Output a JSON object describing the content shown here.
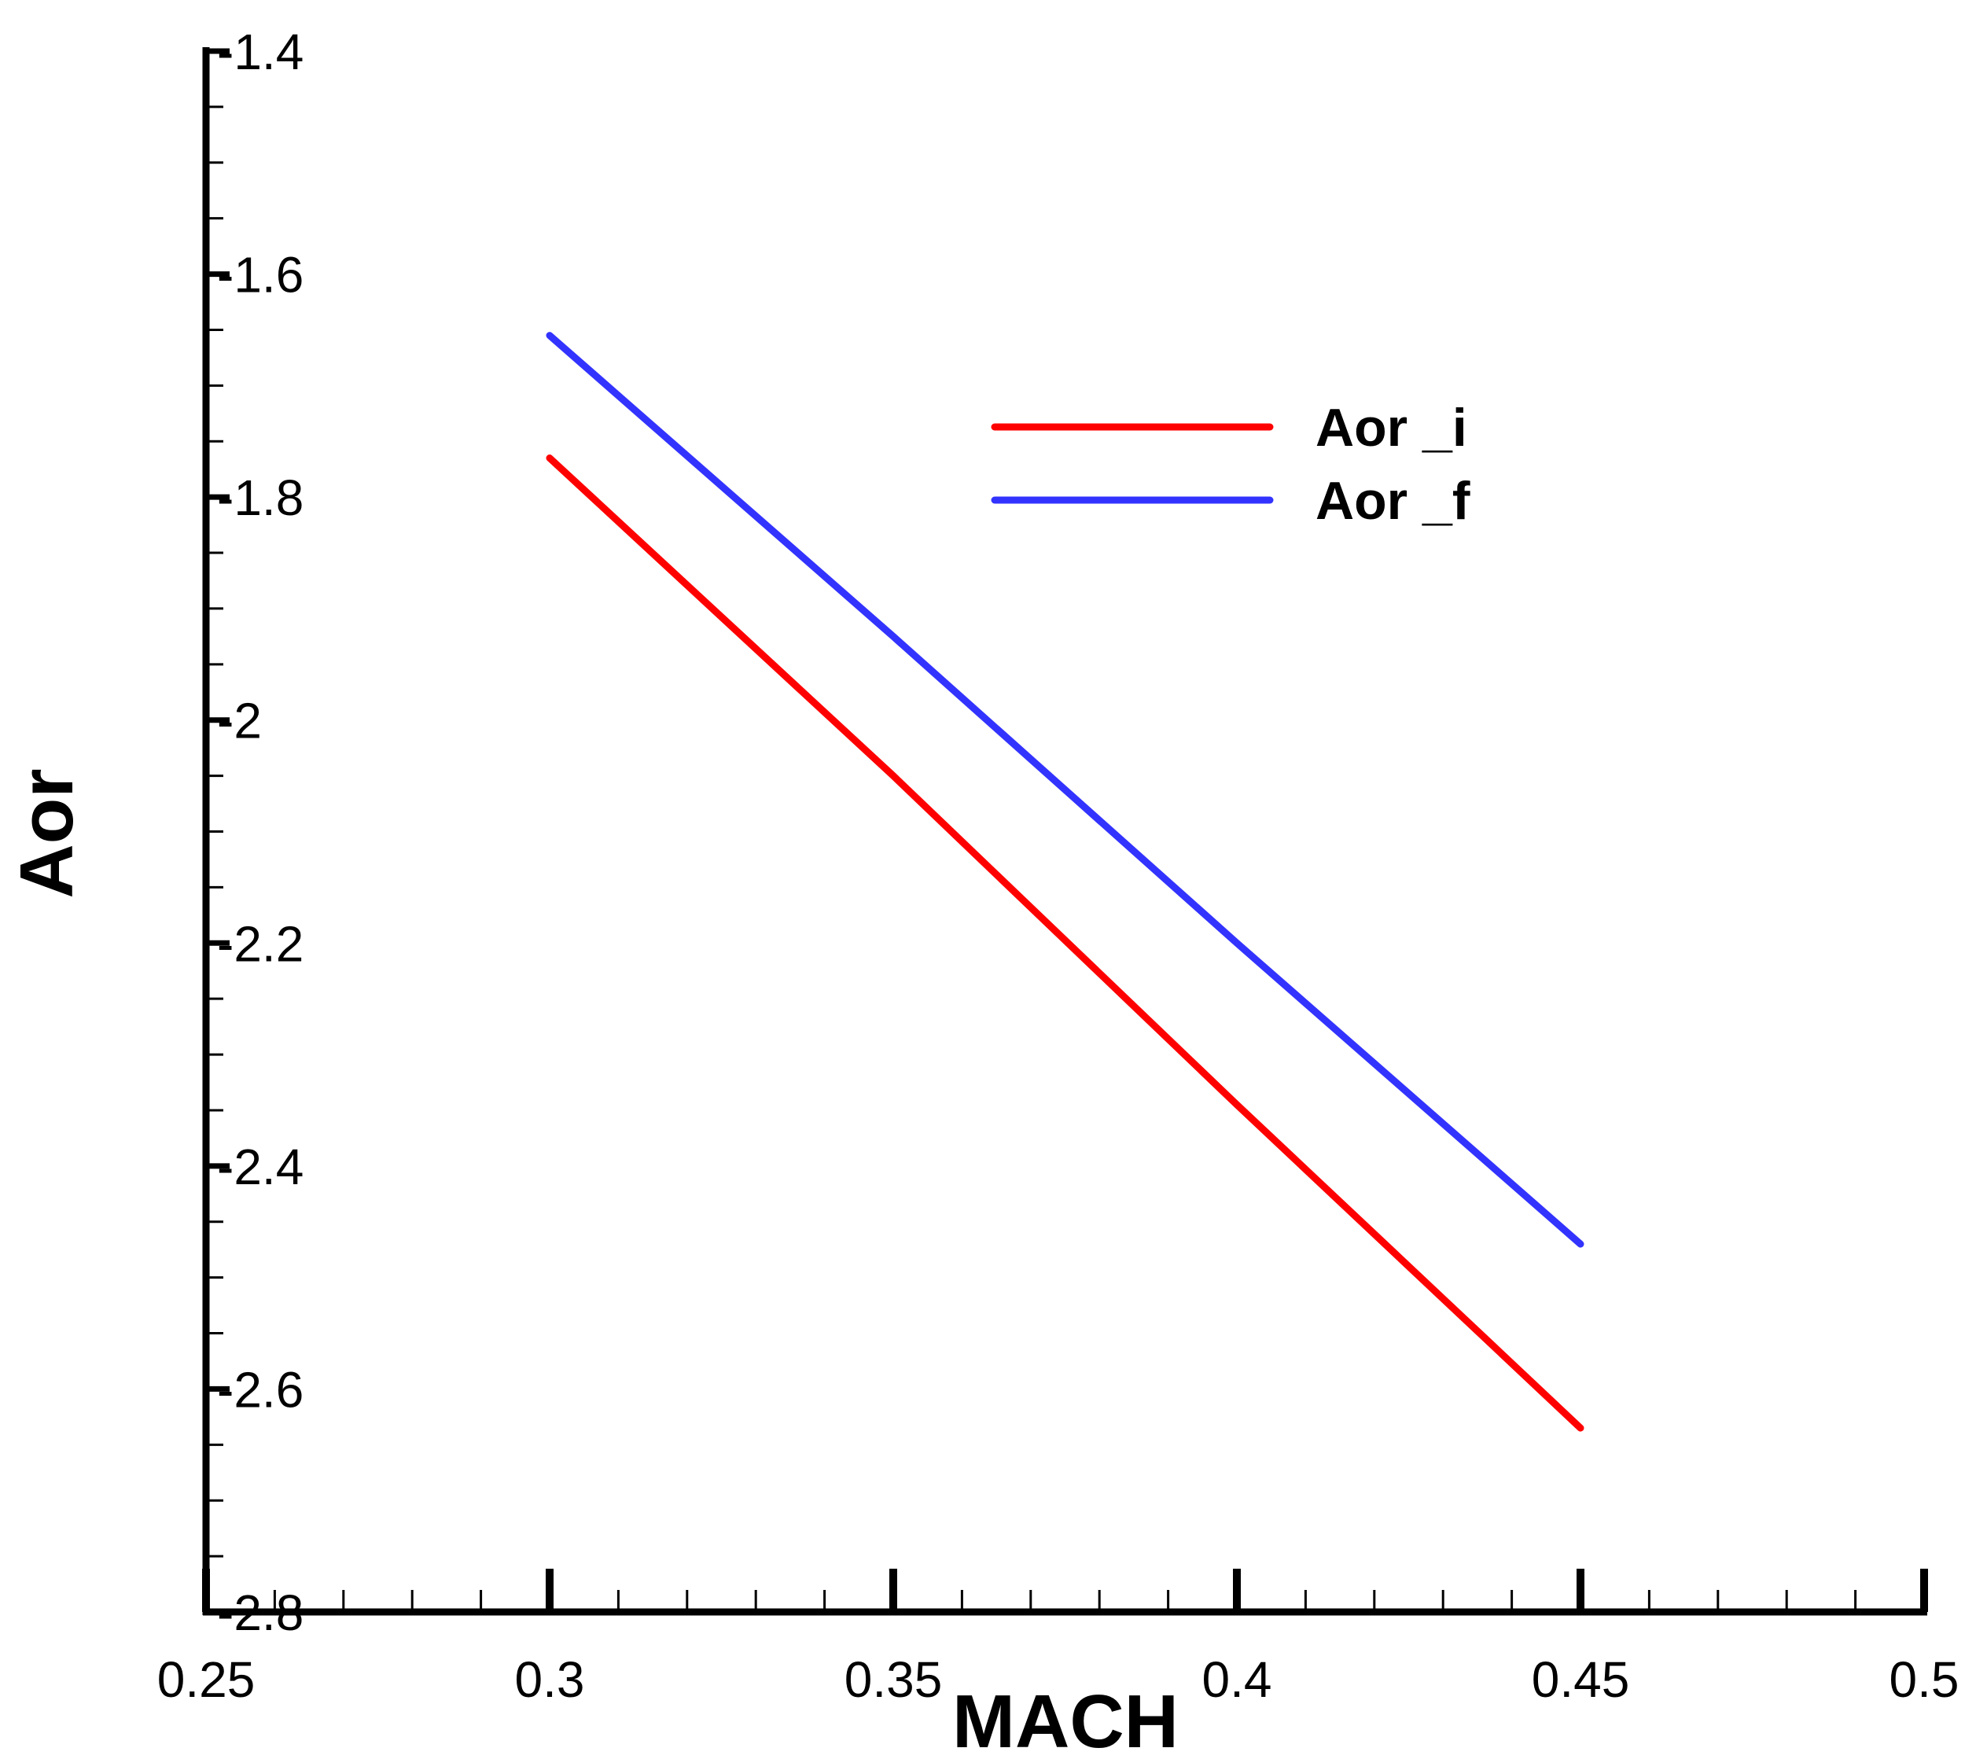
{
  "chart_data": {
    "type": "line",
    "xlabel": "MACH",
    "ylabel": "Aor",
    "xlim": [
      0.25,
      0.5
    ],
    "ylim": [
      -2.8,
      -1.4
    ],
    "x_ticks": [
      "0.25",
      "0.3",
      "0.35",
      "0.4",
      "0.45",
      "0.5"
    ],
    "y_ticks": [
      "-1.4",
      "-1.6",
      "-1.8",
      "-2",
      "-2.2",
      "-2.4",
      "-2.6",
      "-2.8"
    ],
    "grid": false,
    "legend_position": "top-right",
    "series": [
      {
        "name": "Aor _i",
        "color": "#ff0000",
        "x": [
          0.3,
          0.35,
          0.4,
          0.45
        ],
        "y": [
          -1.765,
          -2.05,
          -2.345,
          -2.635
        ]
      },
      {
        "name": "Aor _f",
        "color": "#3333ff",
        "x": [
          0.3,
          0.35,
          0.4,
          0.45
        ],
        "y": [
          -1.655,
          -1.925,
          -2.2,
          -2.47
        ]
      }
    ]
  }
}
